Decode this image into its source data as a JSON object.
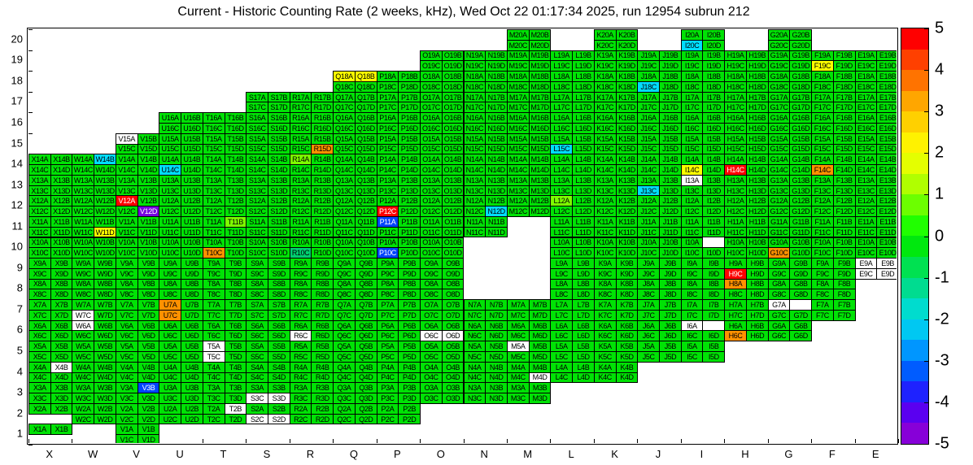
{
  "chart_data": {
    "type": "heatmap",
    "title": "Current - Historic Counting Rate (2 weeks, kHz), Wed Oct 22 01:17:34 2025, run 12954 subrun 212",
    "columns": [
      "X",
      "W",
      "V",
      "U",
      "T",
      "S",
      "R",
      "Q",
      "P",
      "O",
      "N",
      "M",
      "L",
      "K",
      "J",
      "I",
      "H",
      "G",
      "F",
      "E"
    ],
    "rows": [
      20,
      19,
      18,
      17,
      16,
      15,
      14,
      13,
      12,
      11,
      10,
      9,
      8,
      7,
      6,
      5,
      4,
      3,
      2,
      1
    ],
    "subcells": [
      "A",
      "B",
      "C",
      "D"
    ],
    "cell_label_format": "{column}{row}{subcell}",
    "legend_position": "right",
    "colorbar": {
      "min": -5,
      "max": 5,
      "ticks": [
        5,
        4,
        3,
        2,
        1,
        0,
        -1,
        -2,
        -3,
        -4,
        -5
      ],
      "band_colors": [
        "#ff0000",
        "#ff4000",
        "#ff7300",
        "#ffa600",
        "#ffd000",
        "#fff200",
        "#e4ff00",
        "#b0ff00",
        "#6cff00",
        "#20ff00",
        "#00e80e",
        "#00e151",
        "#00dc90",
        "#00dcce",
        "#00c8f2",
        "#0096ff",
        "#005cff",
        "#1e22ff",
        "#5a00f0",
        "#8700d8"
      ]
    },
    "palette": {
      "g": "#00e205",
      "l": "#7dff00",
      "y": "#ffff00",
      "o": "#ff9100",
      "r": "#ff0000",
      "t": "#00cf70",
      "c": "#00ddff",
      "b": "#0044ff",
      "p": "#7700e0",
      "w": "#ffffff"
    },
    "code_values": {
      "g": "~0",
      "l": "~1",
      "y": "~2",
      "o": "~3.5",
      "r": "~5",
      "t": "~-1",
      "c": "~-2",
      "b": "~-4",
      "p": "~-5",
      "w": "no data"
    },
    "grid": [
      {
        "row": 20,
        "cols": {
          "M": "gggg",
          "K": "gggg",
          "I": "ggcg",
          "G": "gggg"
        }
      },
      {
        "row": 19,
        "cols": {
          "O": "gggg",
          "N": "gggg",
          "M": "gggg",
          "L": "gggg",
          "K": "gggg",
          "J": "gggg",
          "I": "gggg",
          "H": "gggg",
          "G": "gggg",
          "F": "ggyg",
          "E": "gggg"
        }
      },
      {
        "row": 18,
        "cols": {
          "Q": "yygg",
          "P": "gggg",
          "O": "gggg",
          "N": "gggg",
          "M": "gggg",
          "L": "gggg",
          "K": "gggg",
          "J": "ggcg",
          "I": "gggg",
          "H": "gggg",
          "G": "gggg",
          "F": "gggg",
          "E": "gggg"
        }
      },
      {
        "row": 17,
        "cols": {
          "S": "gggg",
          "R": "gggg",
          "Q": "gggg",
          "P": "gggg",
          "O": "gggg",
          "N": "gggg",
          "M": "gggg",
          "L": "gggg",
          "K": "gggg",
          "J": "gggg",
          "I": "gggg",
          "H": "gggg",
          "G": "gggg",
          "F": "gggg",
          "E": "gggg"
        }
      },
      {
        "row": 16,
        "cols": {
          "U": "gggg",
          "T": "gggg",
          "S": "gggg",
          "R": "gggg",
          "Q": "gggg",
          "P": "gggg",
          "O": "gggg",
          "N": "gggg",
          "M": "gggg",
          "L": "gggg",
          "K": "gggg",
          "J": "gggg",
          "I": "gggg",
          "H": "gggg",
          "G": "gggg",
          "F": "gggg",
          "E": "gggg"
        }
      },
      {
        "row": 15,
        "cols": {
          "V": "wggg",
          "U": "gggg",
          "T": "gggg",
          "S": "gggg",
          "R": "gggo",
          "Q": "gggg",
          "P": "gggg",
          "O": "gggg",
          "N": "gggg",
          "M": "gggg",
          "L": "ggcg",
          "K": "gggg",
          "J": "gggg",
          "I": "gggg",
          "H": "gggg",
          "G": "gggg",
          "F": "gggg",
          "E": "gggg"
        }
      },
      {
        "row": 14,
        "cols": {
          "X": "gggg",
          "W": "gcgg",
          "V": "gggg",
          "U": "ggcg",
          "T": "gggg",
          "S": "gggg",
          "R": "lggg",
          "Q": "gggg",
          "P": "gggg",
          "O": "gggg",
          "N": "gggg",
          "M": "gggg",
          "L": "gggg",
          "K": "gggg",
          "J": "gggg",
          "I": "ggyg",
          "H": "ggrg",
          "G": "gggg",
          "F": "ggog",
          "E": "gggg"
        }
      },
      {
        "row": 13,
        "cols": {
          "X": "gggg",
          "W": "gggg",
          "V": "gggg",
          "U": "gggg",
          "T": "gggg",
          "S": "gggg",
          "R": "gggg",
          "Q": "gggg",
          "P": "gggg",
          "O": "gggg",
          "N": "gggg",
          "M": "gggg",
          "L": "gggg",
          "K": "gggg",
          "J": "ggcg",
          "I": "wggg",
          "H": "gggg",
          "G": "gggg",
          "F": "gggg",
          "E": "gggg"
        }
      },
      {
        "row": 12,
        "cols": {
          "X": "gggg",
          "W": "gggg",
          "V": "rggp",
          "U": "gggg",
          "T": "gggg",
          "S": "gggg",
          "R": "gggg",
          "Q": "gggg",
          "P": "ggrg",
          "O": "gggg",
          "N": "gggc",
          "M": "gggg",
          "L": "lggg",
          "K": "gggg",
          "J": "gggg",
          "I": "gggg",
          "H": "gggg",
          "G": "gggg",
          "F": "gggg",
          "E": "gggg"
        }
      },
      {
        "row": 11,
        "cols": {
          "X": "gggg",
          "W": "gggy",
          "V": "gggg",
          "U": "gggg",
          "T": "glgg",
          "S": "gggg",
          "R": "gggg",
          "Q": "gggg",
          "P": "bggg",
          "O": "gggg",
          "N": "gggg",
          "L": "gggg",
          "K": "gggg",
          "J": "gggg",
          "I": "gggg",
          "H": "gggg",
          "G": "gggg",
          "F": "gggg",
          "E": "gggg"
        }
      },
      {
        "row": 10,
        "cols": {
          "X": "gggg",
          "W": "gggg",
          "V": "gggg",
          "U": "gggg",
          "T": "ggog",
          "S": "gggg",
          "R": "ggtg",
          "Q": "gggg",
          "P": "ggbg",
          "O": "gggg",
          "L": "gggg",
          "K": "gggg",
          "J": "gggg",
          "I": "g-gg",
          "H": "gggg",
          "G": "ggog",
          "F": "gggg",
          "E": "gggg"
        }
      },
      {
        "row": 9,
        "cols": {
          "X": "gggg",
          "W": "gggg",
          "V": "gggg",
          "U": "gggg",
          "T": "gggg",
          "S": "gggg",
          "R": "gggg",
          "Q": "gggg",
          "P": "gggg",
          "O": "gggg",
          "L": "gggg",
          "K": "gggg",
          "J": "gggg",
          "I": "gggg",
          "H": "ggrg",
          "G": "gggg",
          "F": "gggg",
          "E": "wwww"
        }
      },
      {
        "row": 8,
        "cols": {
          "X": "gggg",
          "W": "gggg",
          "V": "gggg",
          "U": "gggg",
          "T": "gggg",
          "S": "gggg",
          "R": "gggg",
          "Q": "gggg",
          "P": "gggg",
          "O": "gggg",
          "L": "gggg",
          "K": "gggg",
          "J": "gggg",
          "I": "gggg",
          "H": "oggg",
          "G": "gggg",
          "F": "gggg"
        }
      },
      {
        "row": 7,
        "cols": {
          "X": "gggg",
          "W": "ggwg",
          "V": "gggg",
          "U": "ogog",
          "T": "gggg",
          "S": "gggg",
          "R": "gggg",
          "Q": "gggg",
          "P": "gggg",
          "O": "gggg",
          "N": "gggg",
          "M": "gggg",
          "L": "gggg",
          "K": "gggg",
          "J": "gggg",
          "I": "gggg",
          "H": "gggg",
          "G": "w-gg",
          "F": "gggg"
        }
      },
      {
        "row": 6,
        "cols": {
          "X": "gggg",
          "W": "wggg",
          "V": "gggg",
          "U": "gggg",
          "T": "gggg",
          "S": "gggg",
          "R": "ggwg",
          "Q": "gggg",
          "P": "gggg",
          "O": "ggww",
          "N": "gggg",
          "M": "gggg",
          "L": "gggg",
          "K": "gggg",
          "J": "gggg",
          "I": "w-gg",
          "H": "ggog",
          "G": "gggg"
        }
      },
      {
        "row": 5,
        "cols": {
          "X": "gggg",
          "W": "gggg",
          "V": "gggg",
          "U": "gggg",
          "T": "wgwg",
          "S": "gggg",
          "R": "gggg",
          "Q": "gggg",
          "P": "gggg",
          "O": "gggg",
          "N": "gggg",
          "M": "wggg",
          "L": "gggg",
          "K": "gggg",
          "J": "gggg",
          "I": "gggg"
        }
      },
      {
        "row": 4,
        "cols": {
          "X": "gwgg",
          "W": "gggg",
          "V": "gggg",
          "U": "gggg",
          "T": "gggg",
          "S": "gggg",
          "R": "gggg",
          "Q": "gggg",
          "P": "gggg",
          "O": "gggg",
          "N": "gggg",
          "M": "gggw",
          "L": "gggg",
          "K": "gggg"
        }
      },
      {
        "row": 3,
        "cols": {
          "X": "gggg",
          "W": "gggg",
          "V": "gbgg",
          "U": "gggg",
          "T": "gggg",
          "S": "ggww",
          "R": "gggg",
          "Q": "gggg",
          "P": "gggg",
          "O": "gggg",
          "N": "gggg",
          "M": "gggg"
        }
      },
      {
        "row": 2,
        "cols": {
          "X": "gg--",
          "W": "gggg",
          "V": "gggg",
          "U": "gggg",
          "T": "gwgg",
          "S": "ggww",
          "R": "gggg",
          "Q": "gggg",
          "P": "gggg"
        }
      },
      {
        "row": 1,
        "cols": {
          "X": "gg--",
          "V": "gggg"
        }
      }
    ]
  }
}
